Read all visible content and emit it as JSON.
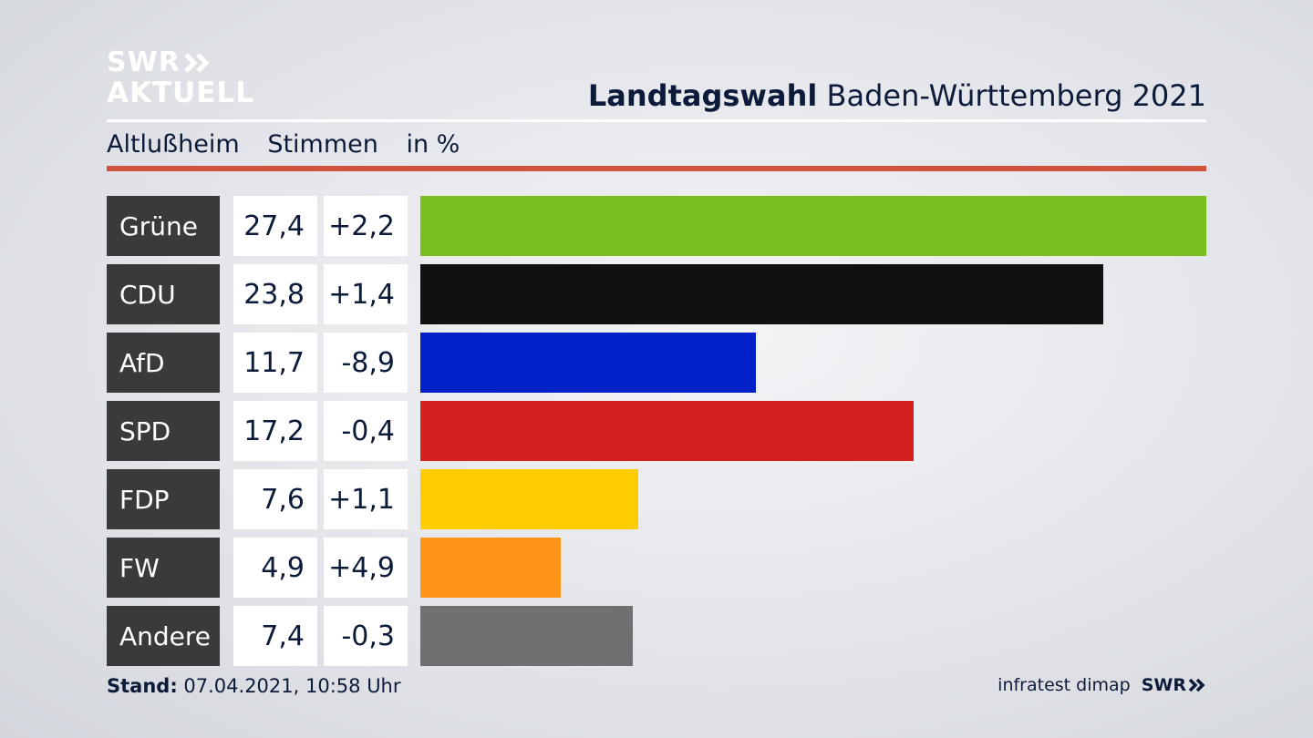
{
  "brand": {
    "logo_line1": "SWR",
    "logo_line2": "AKTUELL",
    "footer_source": "infratest dimap",
    "footer_logo": "SWR"
  },
  "header": {
    "title_bold": "Landtagswahl",
    "title_rest": "Baden-Württemberg 2021"
  },
  "subheader": {
    "location": "Altlußheim",
    "metric": "Stimmen",
    "unit": "in %"
  },
  "footer": {
    "stand_label": "Stand:",
    "stand_value": "07.04.2021, 10:58 Uhr"
  },
  "colors": {
    "accent_rule": "#d0543c",
    "label_bg": "#3a3a3a"
  },
  "chart_data": {
    "type": "bar",
    "orientation": "horizontal",
    "categories": [
      "Grüne",
      "CDU",
      "AfD",
      "SPD",
      "FDP",
      "FW",
      "Andere"
    ],
    "values": [
      27.4,
      23.8,
      11.7,
      17.2,
      7.6,
      4.9,
      7.4
    ],
    "value_labels": [
      "27,4",
      "23,8",
      "11,7",
      "17,2",
      "7,6",
      "4,9",
      "7,4"
    ],
    "changes": [
      2.2,
      1.4,
      -8.9,
      -0.4,
      1.1,
      4.9,
      -0.3
    ],
    "change_labels": [
      "+2,2",
      "+1,4",
      "-8,9",
      "-0,4",
      "+1,1",
      "+4,9",
      "-0,3"
    ],
    "bar_colors": [
      "#78be1e",
      "#111111",
      "#0021c8",
      "#d62020",
      "#ffcc00",
      "#ff9419",
      "#707070"
    ],
    "xlim": [
      0,
      27.4
    ],
    "grid": false,
    "legend": "none"
  }
}
